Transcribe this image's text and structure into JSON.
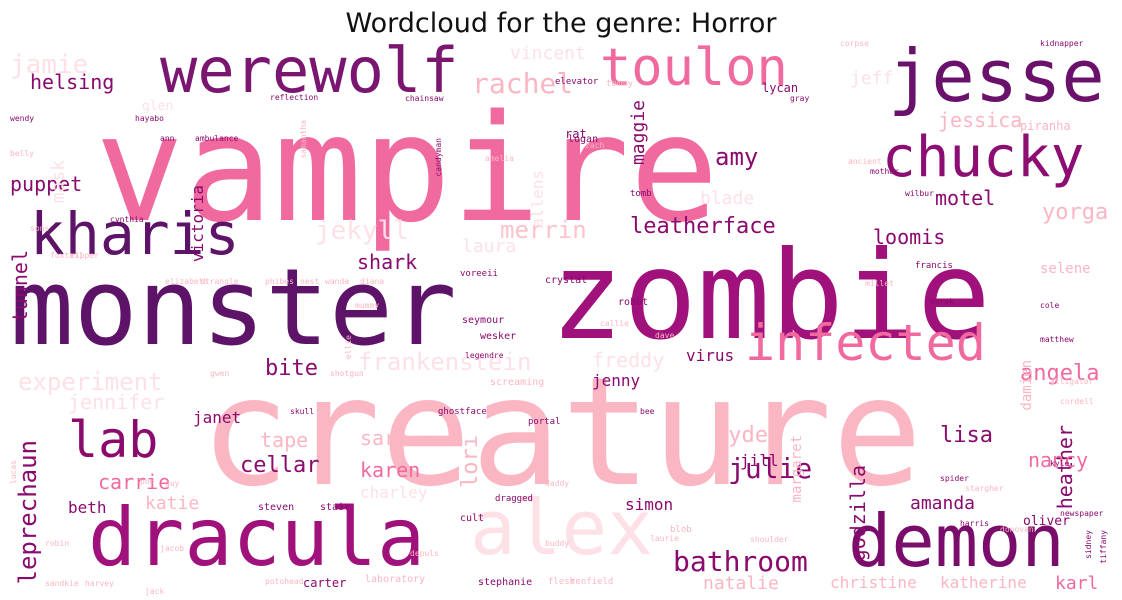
{
  "title": "Wordcloud for the genre: Horror",
  "colors": {
    "dark_purple": "#5c1368",
    "magenta": "#a0117b",
    "deep_magenta": "#8a0a6e",
    "pink": "#f0609c",
    "light_pink": "#fbb4c4",
    "pale_pink": "#fde3e6",
    "very_pale_pink": "#fff0f1"
  },
  "words": [
    {
      "text": "vampire",
      "size": 148,
      "color": "#f06a9f"
    },
    {
      "text": "creature",
      "size": 150,
      "color": "#fbb6c3"
    },
    {
      "text": "zombie",
      "size": 122,
      "color": "#a0117b"
    },
    {
      "text": "monster",
      "size": 106,
      "color": "#5c1368"
    },
    {
      "text": "dracula",
      "size": 80,
      "color": "#a0117b"
    },
    {
      "text": "demon",
      "size": 72,
      "color": "#7a0d6c"
    },
    {
      "text": "werewolf",
      "size": 62,
      "color": "#7a1670"
    },
    {
      "text": "jesse",
      "size": 72,
      "color": "#6a126b"
    },
    {
      "text": "toulon",
      "size": 52,
      "color": "#f06a9f"
    },
    {
      "text": "chucky",
      "size": 56,
      "color": "#8c0e73"
    },
    {
      "text": "kharis",
      "size": 58,
      "color": "#5c1368"
    },
    {
      "text": "infected",
      "size": 50,
      "color": "#f06a9f"
    },
    {
      "text": "alex",
      "size": 76,
      "color": "#fde1e6"
    },
    {
      "text": "lab",
      "size": 50,
      "color": "#8a0a6e"
    },
    {
      "text": "leatherface",
      "size": 22,
      "color": "#8a0a6e"
    },
    {
      "text": "julie",
      "size": 28,
      "color": "#8a0a6e"
    },
    {
      "text": "bathroom",
      "size": 28,
      "color": "#8a0a6e"
    },
    {
      "text": "leprechaun",
      "size": 24,
      "color": "#8a0a6e"
    },
    {
      "text": "helsing",
      "size": 20,
      "color": "#8a0a6e"
    },
    {
      "text": "puppet",
      "size": 20,
      "color": "#8a0a6e"
    },
    {
      "text": "amy",
      "size": 24,
      "color": "#8a0a6e"
    },
    {
      "text": "maggie",
      "size": 18,
      "color": "#8a0a6e"
    },
    {
      "text": "motel",
      "size": 20,
      "color": "#8a0a6e"
    },
    {
      "text": "loomis",
      "size": 20,
      "color": "#8a0a6e"
    },
    {
      "text": "shark",
      "size": 20,
      "color": "#8a0a6e"
    },
    {
      "text": "bite",
      "size": 22,
      "color": "#8a0a6e"
    },
    {
      "text": "cellar",
      "size": 22,
      "color": "#8a0a6e"
    },
    {
      "text": "lisa",
      "size": 22,
      "color": "#8a0a6e"
    },
    {
      "text": "heather",
      "size": 20,
      "color": "#8a0a6e"
    },
    {
      "text": "godzilla",
      "size": 20,
      "color": "#8a0a6e"
    },
    {
      "text": "beth",
      "size": 16,
      "color": "#8a0a6e"
    },
    {
      "text": "jill",
      "size": 16,
      "color": "#8a0a6e"
    },
    {
      "text": "amanda",
      "size": 18,
      "color": "#8a0a6e"
    },
    {
      "text": "simon",
      "size": 16,
      "color": "#8a0a6e"
    },
    {
      "text": "jenny",
      "size": 16,
      "color": "#8a0a6e"
    },
    {
      "text": "virus",
      "size": 16,
      "color": "#8a0a6e"
    },
    {
      "text": "janet",
      "size": 16,
      "color": "#8a0a6e"
    },
    {
      "text": "tunnel",
      "size": 20,
      "color": "#8a0a6e"
    },
    {
      "text": "victoria",
      "size": 16,
      "color": "#8a0a6e"
    },
    {
      "text": "rachel",
      "size": 28,
      "color": "#fbb6c3"
    },
    {
      "text": "jamie",
      "size": 26,
      "color": "#fde1e6"
    },
    {
      "text": "jekyll",
      "size": 26,
      "color": "#fde1e6"
    },
    {
      "text": "merrin",
      "size": 24,
      "color": "#fbc3cc"
    },
    {
      "text": "frankenstein",
      "size": 24,
      "color": "#fde1e6"
    },
    {
      "text": "freddy",
      "size": 20,
      "color": "#fde1e6"
    },
    {
      "text": "experiment",
      "size": 24,
      "color": "#fde1e6"
    },
    {
      "text": "jennifer",
      "size": 20,
      "color": "#fde1e6"
    },
    {
      "text": "angela",
      "size": 22,
      "color": "#f06a9f"
    },
    {
      "text": "hyde",
      "size": 22,
      "color": "#fbb6c3"
    },
    {
      "text": "nancy",
      "size": 20,
      "color": "#f06a9f"
    },
    {
      "text": "tape",
      "size": 20,
      "color": "#fbb6c3"
    },
    {
      "text": "sara",
      "size": 20,
      "color": "#fbb6c3"
    },
    {
      "text": "karen",
      "size": 20,
      "color": "#f06a9f"
    },
    {
      "text": "carrie",
      "size": 20,
      "color": "#f06a9f"
    },
    {
      "text": "katie",
      "size": 18,
      "color": "#fbb6c3"
    },
    {
      "text": "charley",
      "size": 16,
      "color": "#fde1e6"
    },
    {
      "text": "lori",
      "size": 22,
      "color": "#fbb6c3"
    },
    {
      "text": "laura",
      "size": 18,
      "color": "#fde1e6"
    },
    {
      "text": "yorga",
      "size": 22,
      "color": "#fbb6c3"
    },
    {
      "text": "jessica",
      "size": 20,
      "color": "#fbb6c3"
    },
    {
      "text": "blade",
      "size": 18,
      "color": "#fde1e6"
    },
    {
      "text": "mask",
      "size": 18,
      "color": "#fde1e6"
    },
    {
      "text": "vincent",
      "size": 18,
      "color": "#fde1e6"
    },
    {
      "text": "jeff",
      "size": 18,
      "color": "#fde1e6"
    },
    {
      "text": "allens",
      "size": 16,
      "color": "#fde1e6"
    },
    {
      "text": "natalie",
      "size": 18,
      "color": "#fbb6c3"
    },
    {
      "text": "christine",
      "size": 16,
      "color": "#fbb6c3"
    },
    {
      "text": "katherine",
      "size": 16,
      "color": "#fbb6c3"
    },
    {
      "text": "karl",
      "size": 18,
      "color": "#f06a9f"
    },
    {
      "text": "margaret",
      "size": 14,
      "color": "#fbb6c3"
    },
    {
      "text": "damien",
      "size": 14,
      "color": "#fbb6c3"
    },
    {
      "text": "selene",
      "size": 14,
      "color": "#fbb6c3"
    },
    {
      "text": "oliver",
      "size": 13,
      "color": "#8a0a6e"
    },
    {
      "text": "glen",
      "size": 13,
      "color": "#fde1e6"
    },
    {
      "text": "rat",
      "size": 12,
      "color": "#8a0a6e"
    },
    {
      "text": "logan",
      "size": 10,
      "color": "#8a0a6e"
    },
    {
      "text": "crystal",
      "size": 10,
      "color": "#8a0a6e"
    },
    {
      "text": "robot",
      "size": 10,
      "color": "#8a0a6e"
    },
    {
      "text": "seymour",
      "size": 10,
      "color": "#8a0a6e"
    },
    {
      "text": "wesker",
      "size": 10,
      "color": "#8a0a6e"
    },
    {
      "text": "screaming",
      "size": 10,
      "color": "#fbb6c3"
    },
    {
      "text": "portal",
      "size": 9,
      "color": "#8a0a6e"
    },
    {
      "text": "ghostface",
      "size": 9,
      "color": "#8a0a6e"
    },
    {
      "text": "cult",
      "size": 10,
      "color": "#8a0a6e"
    },
    {
      "text": "dragged",
      "size": 9,
      "color": "#8a0a6e"
    },
    {
      "text": "steven",
      "size": 10,
      "color": "#8a0a6e"
    },
    {
      "text": "stair",
      "size": 10,
      "color": "#8a0a6e"
    },
    {
      "text": "carter",
      "size": 12,
      "color": "#8a0a6e"
    },
    {
      "text": "laboratory",
      "size": 10,
      "color": "#fbb6c3"
    },
    {
      "text": "stephanie",
      "size": 10,
      "color": "#8a0a6e"
    },
    {
      "text": "flesh",
      "size": 9,
      "color": "#fbb6c3"
    },
    {
      "text": "renfield",
      "size": 9,
      "color": "#fbb6c3"
    },
    {
      "text": "blob",
      "size": 9,
      "color": "#fbb6c3"
    },
    {
      "text": "tommy",
      "size": 9,
      "color": "#fbb6c3"
    },
    {
      "text": "tomb",
      "size": 9,
      "color": "#8a0a6e"
    },
    {
      "text": "lycan",
      "size": 12,
      "color": "#8a0a6e"
    },
    {
      "text": "elevator",
      "size": 9,
      "color": "#8a0a6e"
    },
    {
      "text": "piranha",
      "size": 12,
      "color": "#fbb6c3"
    },
    {
      "text": "ancient",
      "size": 8,
      "color": "#fbb6c3"
    },
    {
      "text": "mother",
      "size": 8,
      "color": "#8a0a6e"
    },
    {
      "text": "wilbur",
      "size": 8,
      "color": "#8a0a6e"
    },
    {
      "text": "francis",
      "size": 9,
      "color": "#8a0a6e"
    },
    {
      "text": "millet",
      "size": 8,
      "color": "#fbb6c3"
    },
    {
      "text": "derek",
      "size": 8,
      "color": "#8a0a6e"
    },
    {
      "text": "cole",
      "size": 8,
      "color": "#8a0a6e"
    },
    {
      "text": "matthew",
      "size": 8,
      "color": "#8a0a6e"
    },
    {
      "text": "gray",
      "size": 8,
      "color": "#8a0a6e"
    },
    {
      "text": "alligator",
      "size": 8,
      "color": "#fbb6c3"
    },
    {
      "text": "cordell",
      "size": 8,
      "color": "#fbb6c3"
    },
    {
      "text": "kyle",
      "size": 8,
      "color": "#8a0a6e"
    },
    {
      "text": "spider",
      "size": 8,
      "color": "#8a0a6e"
    },
    {
      "text": "stargher",
      "size": 8,
      "color": "#fbb6c3"
    },
    {
      "text": "newspaper",
      "size": 8,
      "color": "#8a0a6e"
    },
    {
      "text": "harris",
      "size": 8,
      "color": "#8a0a6e"
    },
    {
      "text": "donovan",
      "size": 8,
      "color": "#fbb6c3"
    },
    {
      "text": "sidney",
      "size": 8,
      "color": "#8a0a6e"
    },
    {
      "text": "tiffany",
      "size": 8,
      "color": "#8a0a6e"
    },
    {
      "text": "laurie",
      "size": 8,
      "color": "#fbb6c3"
    },
    {
      "text": "shoulder",
      "size": 8,
      "color": "#fbb6c3"
    },
    {
      "text": "wendy",
      "size": 8,
      "color": "#8a0a6e"
    },
    {
      "text": "hayabo",
      "size": 8,
      "color": "#8a0a6e"
    },
    {
      "text": "ann",
      "size": 8,
      "color": "#8a0a6e"
    },
    {
      "text": "ambulance",
      "size": 8,
      "color": "#8a0a6e"
    },
    {
      "text": "reflection",
      "size": 8,
      "color": "#8a0a6e"
    },
    {
      "text": "chainsaw",
      "size": 8,
      "color": "#8a0a6e"
    },
    {
      "text": "candyman",
      "size": 8,
      "color": "#8a0a6e"
    },
    {
      "text": "samantha",
      "size": 8,
      "color": "#fbb6c3"
    },
    {
      "text": "cynthia",
      "size": 8,
      "color": "#8a0a6e"
    },
    {
      "text": "kidnapper",
      "size": 8,
      "color": "#8a0a6e"
    },
    {
      "text": "corpse",
      "size": 8,
      "color": "#fbb6c3"
    },
    {
      "text": "voreeii",
      "size": 9,
      "color": "#8a0a6e"
    },
    {
      "text": "diana",
      "size": 8,
      "color": "#fbb6c3"
    },
    {
      "text": "phibes",
      "size": 8,
      "color": "#fbb6c3"
    },
    {
      "text": "nest",
      "size": 8,
      "color": "#fbb6c3"
    },
    {
      "text": "elizabeth",
      "size": 8,
      "color": "#fbb6c3"
    },
    {
      "text": "wanda",
      "size": 8,
      "color": "#fbb6c3"
    },
    {
      "text": "strangle",
      "size": 8,
      "color": "#fbb6c3"
    },
    {
      "text": "mummy",
      "size": 8,
      "color": "#fbb6c3"
    },
    {
      "text": "legendre",
      "size": 8,
      "color": "#8a0a6e"
    },
    {
      "text": "skull",
      "size": 8,
      "color": "#8a0a6e"
    },
    {
      "text": "bee",
      "size": 8,
      "color": "#8a0a6e"
    },
    {
      "text": "daddy",
      "size": 8,
      "color": "#fbb6c3"
    },
    {
      "text": "pod",
      "size": 8,
      "color": "#fbb6c3"
    },
    {
      "text": "robin",
      "size": 8,
      "color": "#fbb6c3"
    },
    {
      "text": "jacob",
      "size": 8,
      "color": "#fbb6c3"
    },
    {
      "text": "sandkie",
      "size": 8,
      "color": "#fbb6c3"
    },
    {
      "text": "harvey",
      "size": 8,
      "color": "#fbb6c3"
    },
    {
      "text": "lucas",
      "size": 8,
      "color": "#fbb6c3"
    },
    {
      "text": "depuls",
      "size": 8,
      "color": "#fbb6c3"
    },
    {
      "text": "buddy",
      "size": 8,
      "color": "#fbb6c3"
    },
    {
      "text": "shotgun",
      "size": 8,
      "color": "#fbb6c3"
    },
    {
      "text": "gwen",
      "size": 8,
      "color": "#fbb6c3"
    },
    {
      "text": "ellie",
      "size": 8,
      "color": "#fbb6c3"
    },
    {
      "text": "dave",
      "size": 8,
      "color": "#fbb6c3"
    },
    {
      "text": "guy",
      "size": 8,
      "color": "#fbb6c3"
    },
    {
      "text": "callie",
      "size": 8,
      "color": "#fbb6c3"
    },
    {
      "text": "zach",
      "size": 8,
      "color": "#fbb6c3"
    },
    {
      "text": "amelia",
      "size": 8,
      "color": "#fbb6c3"
    },
    {
      "text": "belly",
      "size": 8,
      "color": "#fbb6c3"
    },
    {
      "text": "sons",
      "size": 8,
      "color": "#fbb6c3"
    },
    {
      "text": "foxtail",
      "size": 8,
      "color": "#fbb6c3"
    },
    {
      "text": "ripper",
      "size": 8,
      "color": "#fbb6c3"
    },
    {
      "text": "potohead",
      "size": 8,
      "color": "#fbb6c3"
    },
    {
      "text": "jack",
      "size": 8,
      "color": "#fbb6c3"
    }
  ]
}
